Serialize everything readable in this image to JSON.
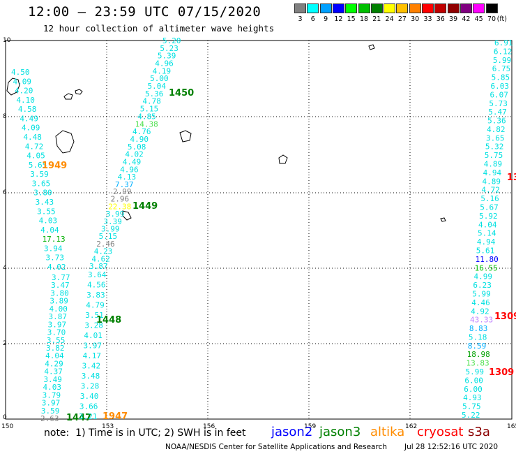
{
  "title": "12:00 – 23:59 UTC 07/15/2020",
  "subtitle": "12 hour collection of altimeter wave heights",
  "legend": {
    "unit": "(ft)",
    "items": [
      {
        "label": "3",
        "color": "#808080"
      },
      {
        "label": "6",
        "color": "#00ffff"
      },
      {
        "label": "9",
        "color": "#00a0ff"
      },
      {
        "label": "12",
        "color": "#0000ff"
      },
      {
        "label": "15",
        "color": "#00ff00"
      },
      {
        "label": "18",
        "color": "#00c000"
      },
      {
        "label": "21",
        "color": "#008000"
      },
      {
        "label": "24",
        "color": "#ffff00"
      },
      {
        "label": "27",
        "color": "#ffc000"
      },
      {
        "label": "30",
        "color": "#ff8000"
      },
      {
        "label": "33",
        "color": "#ff0000"
      },
      {
        "label": "36",
        "color": "#c00000"
      },
      {
        "label": "39",
        "color": "#900000"
      },
      {
        "label": "42",
        "color": "#800080"
      },
      {
        "label": "45",
        "color": "#ff00ff"
      },
      {
        "label": "70",
        "color": "#000000"
      }
    ]
  },
  "axes": {
    "x_ticks": [
      "150",
      "153",
      "156",
      "159",
      "162",
      "165"
    ],
    "y_ticks": [
      "0",
      "2",
      "4",
      "6",
      "8",
      "10"
    ]
  },
  "tracks": [
    {
      "time": "1949",
      "time_color": "#ff8c00",
      "values": [
        {
          "v": "4.50",
          "c": "#00e0e0"
        },
        {
          "v": "4.09",
          "c": "#00e0e0"
        },
        {
          "v": "4.20",
          "c": "#00e0e0"
        },
        {
          "v": "4.10",
          "c": "#00e0e0"
        },
        {
          "v": "4.58",
          "c": "#00e0e0"
        },
        {
          "v": "4.49",
          "c": "#00e0e0"
        },
        {
          "v": "4.09",
          "c": "#00e0e0"
        },
        {
          "v": "4.48",
          "c": "#00e0e0"
        },
        {
          "v": "4.72",
          "c": "#00e0e0"
        },
        {
          "v": "4.05",
          "c": "#00e0e0"
        },
        {
          "v": "5.65",
          "c": "#00e0e0"
        },
        {
          "v": "3.59",
          "c": "#00e0e0"
        },
        {
          "v": "3.65",
          "c": "#00e0e0"
        },
        {
          "v": "3.80",
          "c": "#00e0e0"
        },
        {
          "v": "3.43",
          "c": "#00e0e0"
        },
        {
          "v": "3.55",
          "c": "#00e0e0"
        },
        {
          "v": "4.03",
          "c": "#00e0e0"
        },
        {
          "v": "4.04",
          "c": "#00e0e0"
        },
        {
          "v": "17.13",
          "c": "#00b000"
        },
        {
          "v": "3.94",
          "c": "#00e0e0"
        },
        {
          "v": "3.73",
          "c": "#00e0e0"
        },
        {
          "v": "4.02",
          "c": "#00e0e0"
        }
      ]
    },
    {
      "time": "1447",
      "time_color": "#008000",
      "values": [
        {
          "v": "3.77",
          "c": "#00e0e0"
        },
        {
          "v": "3.47",
          "c": "#00e0e0"
        },
        {
          "v": "3.80",
          "c": "#00e0e0"
        },
        {
          "v": "3.89",
          "c": "#00e0e0"
        },
        {
          "v": "4.00",
          "c": "#00e0e0"
        },
        {
          "v": "3.87",
          "c": "#00e0e0"
        },
        {
          "v": "3.97",
          "c": "#00e0e0"
        },
        {
          "v": "3.70",
          "c": "#00e0e0"
        },
        {
          "v": "3.55",
          "c": "#00e0e0"
        },
        {
          "v": "3.82",
          "c": "#00e0e0"
        },
        {
          "v": "4.04",
          "c": "#00e0e0"
        },
        {
          "v": "4.29",
          "c": "#00e0e0"
        },
        {
          "v": "4.37",
          "c": "#00e0e0"
        },
        {
          "v": "3.49",
          "c": "#00e0e0"
        },
        {
          "v": "4.03",
          "c": "#00e0e0"
        },
        {
          "v": "3.79",
          "c": "#00e0e0"
        },
        {
          "v": "3.97",
          "c": "#00e0e0"
        },
        {
          "v": "3.59",
          "c": "#00e0e0"
        },
        {
          "v": "2.63",
          "c": "#808080"
        }
      ]
    },
    {
      "time": "1448",
      "time_color": "#008000",
      "values": [
        {
          "v": "3.64",
          "c": "#00e0e0"
        },
        {
          "v": "4.56",
          "c": "#00e0e0"
        },
        {
          "v": "3.83",
          "c": "#00e0e0"
        },
        {
          "v": "4.79",
          "c": "#00e0e0"
        },
        {
          "v": "3.51",
          "c": "#00e0e0"
        },
        {
          "v": "3.28",
          "c": "#00e0e0"
        },
        {
          "v": "4.01",
          "c": "#00e0e0"
        },
        {
          "v": "3.97",
          "c": "#00e0e0"
        },
        {
          "v": "4.17",
          "c": "#00e0e0"
        },
        {
          "v": "3.42",
          "c": "#00e0e0"
        },
        {
          "v": "3.48",
          "c": "#00e0e0"
        },
        {
          "v": "3.28",
          "c": "#00e0e0"
        },
        {
          "v": "3.40",
          "c": "#00e0e0"
        },
        {
          "v": "3.66",
          "c": "#00e0e0"
        },
        {
          "v": "3.21",
          "c": "#00e0e0"
        }
      ]
    },
    {
      "time": "1449",
      "time_color": "#008000",
      "values": [
        {
          "v": "2.99",
          "c": "#808080"
        },
        {
          "v": "2.96",
          "c": "#808080"
        },
        {
          "v": "22.38",
          "c": "#ffff00"
        },
        {
          "v": "3.99",
          "c": "#00e0e0"
        },
        {
          "v": "3.39",
          "c": "#00e0e0"
        },
        {
          "v": "3.99",
          "c": "#00e0e0"
        },
        {
          "v": "5.15",
          "c": "#00e0e0"
        },
        {
          "v": "2.46",
          "c": "#808080"
        },
        {
          "v": "4.23",
          "c": "#00e0e0"
        },
        {
          "v": "4.62",
          "c": "#00e0e0"
        },
        {
          "v": "3.87",
          "c": "#00e0e0"
        }
      ]
    },
    {
      "time": "1450",
      "time_color": "#008000",
      "values": [
        {
          "v": "5.20",
          "c": "#00e0e0"
        },
        {
          "v": "5.23",
          "c": "#00e0e0"
        },
        {
          "v": "5.39",
          "c": "#00e0e0"
        },
        {
          "v": "4.96",
          "c": "#00e0e0"
        },
        {
          "v": "4.19",
          "c": "#00e0e0"
        },
        {
          "v": "5.00",
          "c": "#00e0e0"
        },
        {
          "v": "5.04",
          "c": "#00e0e0"
        },
        {
          "v": "5.36",
          "c": "#00e0e0"
        },
        {
          "v": "4.78",
          "c": "#00e0e0"
        },
        {
          "v": "5.15",
          "c": "#00e0e0"
        },
        {
          "v": "4.85",
          "c": "#00e0e0"
        },
        {
          "v": "14.38",
          "c": "#50e050"
        },
        {
          "v": "4.76",
          "c": "#00e0e0"
        },
        {
          "v": "4.90",
          "c": "#00e0e0"
        },
        {
          "v": "5.08",
          "c": "#00e0e0"
        },
        {
          "v": "4.02",
          "c": "#00e0e0"
        },
        {
          "v": "4.49",
          "c": "#00e0e0"
        },
        {
          "v": "4.96",
          "c": "#00e0e0"
        },
        {
          "v": "4.13",
          "c": "#00e0e0"
        },
        {
          "v": "7.37",
          "c": "#00b0ff"
        }
      ]
    },
    {
      "time": "1947",
      "time_color": "#ff8c00",
      "values": []
    },
    {
      "time": "",
      "time_color": "#008000",
      "values": [
        {
          "v": "6.91",
          "c": "#00e0e0"
        },
        {
          "v": "6.12",
          "c": "#00e0e0"
        },
        {
          "v": "5.99",
          "c": "#00e0e0"
        },
        {
          "v": "6.75",
          "c": "#00e0e0"
        },
        {
          "v": "5.85",
          "c": "#00e0e0"
        },
        {
          "v": "6.03",
          "c": "#00e0e0"
        },
        {
          "v": "6.07",
          "c": "#00e0e0"
        },
        {
          "v": "5.73",
          "c": "#00e0e0"
        },
        {
          "v": "5.47",
          "c": "#00e0e0"
        },
        {
          "v": "5.36",
          "c": "#00e0e0"
        },
        {
          "v": "4.82",
          "c": "#00e0e0"
        },
        {
          "v": "3.65",
          "c": "#00e0e0"
        },
        {
          "v": "5.32",
          "c": "#00e0e0"
        },
        {
          "v": "5.75",
          "c": "#00e0e0"
        },
        {
          "v": "4.89",
          "c": "#00e0e0"
        },
        {
          "v": "4.94",
          "c": "#00e0e0"
        },
        {
          "v": "4.89",
          "c": "#00e0e0"
        },
        {
          "v": "4.72",
          "c": "#00e0e0"
        },
        {
          "v": "5.16",
          "c": "#00e0e0"
        },
        {
          "v": "5.67",
          "c": "#00e0e0"
        },
        {
          "v": "5.92",
          "c": "#00e0e0"
        },
        {
          "v": "4.04",
          "c": "#00e0e0"
        },
        {
          "v": "5.14",
          "c": "#00e0e0"
        },
        {
          "v": "4.94",
          "c": "#00e0e0"
        },
        {
          "v": "5.61",
          "c": "#00e0e0"
        },
        {
          "v": "11.80",
          "c": "#0000ff"
        },
        {
          "v": "16.55",
          "c": "#00c000"
        },
        {
          "v": "4.99",
          "c": "#00e0e0"
        },
        {
          "v": "6.23",
          "c": "#00e0e0"
        },
        {
          "v": "5.99",
          "c": "#00e0e0"
        },
        {
          "v": "4.46",
          "c": "#00e0e0"
        },
        {
          "v": "4.92",
          "c": "#00e0e0"
        },
        {
          "v": "43.33",
          "c": "#c080ff"
        },
        {
          "v": "8.83",
          "c": "#00b0ff"
        },
        {
          "v": "5.18",
          "c": "#00e0e0"
        },
        {
          "v": "8.59",
          "c": "#00b0ff"
        },
        {
          "v": "18.98",
          "c": "#00a000"
        },
        {
          "v": "13.83",
          "c": "#50e050"
        },
        {
          "v": "5.99",
          "c": "#00e0e0"
        },
        {
          "v": "6.00",
          "c": "#00e0e0"
        },
        {
          "v": "6.00",
          "c": "#00e0e0"
        },
        {
          "v": "4.93",
          "c": "#00e0e0"
        },
        {
          "v": "5.75",
          "c": "#00e0e0"
        },
        {
          "v": "5.22",
          "c": "#00e0e0"
        }
      ]
    }
  ],
  "cryosat_times": [
    "13",
    "1309",
    "1309"
  ],
  "note": "note:  1) Time is in UTC; 2) SWH is in feet",
  "satellites": [
    {
      "name": "jason2",
      "color": "#0000ff"
    },
    {
      "name": "jason3",
      "color": "#008000"
    },
    {
      "name": "altika",
      "color": "#ff8c00"
    },
    {
      "name": "cryosat",
      "color": "#ff0000"
    },
    {
      "name": "s3a",
      "color": "#8b0000"
    }
  ],
  "credit": "NOAA/NESDIS Center for Satellite Applications and Research",
  "timestamp": "Jul 28 12:52:16 UTC 2020"
}
